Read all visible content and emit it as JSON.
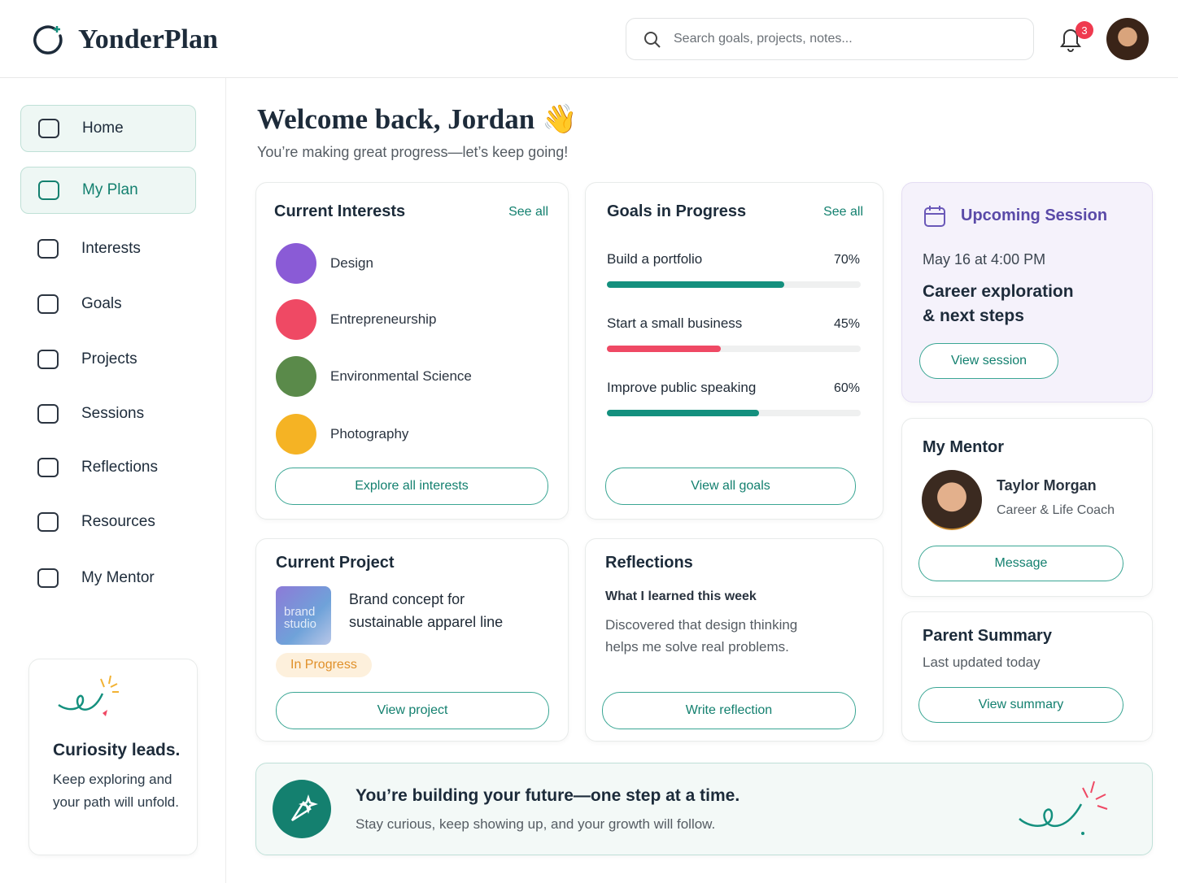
{
  "header": {
    "brand": "YonderPlan",
    "search_placeholder": "Search goals, projects, notes...",
    "notifications": 3
  },
  "sidebar": {
    "nav": [
      "Home",
      "My Plan",
      "Interests",
      "Goals",
      "Projects",
      "Sessions",
      "Reflections",
      "Resources",
      "My Mentor"
    ],
    "card": {
      "title": "Curiosity leads.",
      "text": "Keep exploring and your path will unfold."
    }
  },
  "welcome": {
    "title": "Welcome back, Jordan 👋",
    "subtitle": "You’re making great progress—let’s keep going!"
  },
  "interests": {
    "title": "Current Interests",
    "see_all": "See all",
    "items": [
      "Design",
      "Entrepreneurship",
      "Environmental Science",
      "Photography"
    ],
    "button": "Explore all interests"
  },
  "goals": {
    "title": "Goals in Progress",
    "see_all": "See all",
    "items": [
      {
        "name": "Build a portfolio",
        "value": 70,
        "label": "70%",
        "color": "#14907e"
      },
      {
        "name": "Start a small business",
        "value": 45,
        "label": "45%",
        "color": "#ef4964"
      },
      {
        "name": "Improve public speaking",
        "value": 60,
        "label": "60%",
        "color": "#14907e"
      }
    ],
    "button": "View all goals"
  },
  "session": {
    "title": "Upcoming Session",
    "date": "May 16 at 4:00 PM",
    "topic": "Career exploration & next steps",
    "button": "View session"
  },
  "mentor": {
    "title": "My Mentor",
    "name": "Taylor Morgan",
    "role": "Career & Life Coach",
    "button": "Message"
  },
  "project": {
    "title": "Current Project",
    "thumbnail": "brand studio",
    "name": "Brand concept for sustainable apparel line",
    "status": "In Progress",
    "button": "View project"
  },
  "reflections": {
    "title": "Reflections",
    "heading": "What I learned this week",
    "text": "Discovered that design thinking helps me solve real problems.",
    "button": "Write reflection"
  },
  "parent": {
    "title": "Parent Summary",
    "updated": "Last updated today",
    "button": "View summary"
  },
  "banner": {
    "title": "You’re building your future—one step at a time.",
    "text": "Stay curious, keep showing up, and your growth will follow."
  }
}
